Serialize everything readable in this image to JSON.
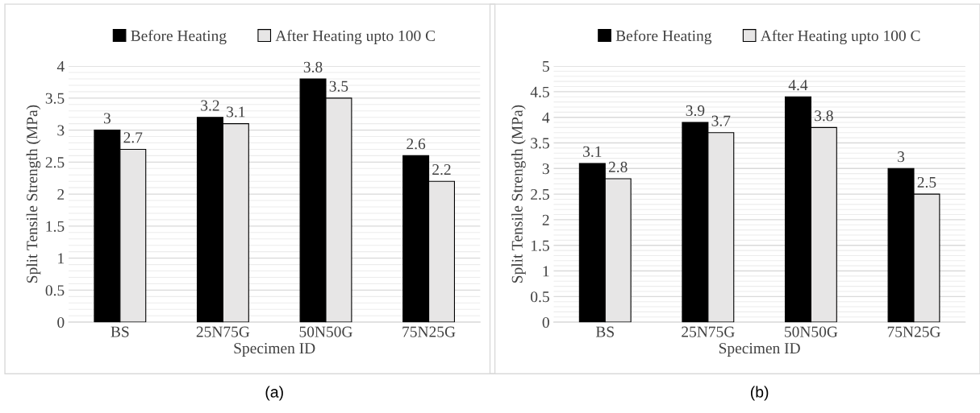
{
  "chart_data": [
    {
      "type": "bar",
      "xlabel": "Specimen ID",
      "ylabel": "Split Tensile Strength (MPa)",
      "categories": [
        "BS",
        "25N75G",
        "50N50G",
        "75N25G"
      ],
      "series": [
        {
          "name": "Before Heating",
          "color": "#000000",
          "values": [
            3,
            3.2,
            3.8,
            2.6
          ]
        },
        {
          "name": "After Heating upto 100 C",
          "color": "#e7e6e6",
          "values": [
            2.7,
            3.1,
            3.5,
            2.2
          ]
        }
      ],
      "ylim": [
        0,
        4
      ],
      "yticks": [
        0,
        0.5,
        1,
        1.5,
        2,
        2.5,
        3,
        3.5,
        4
      ],
      "grid": "y",
      "legend": "top",
      "data_labels": true,
      "annotations": [
        "(a)"
      ]
    },
    {
      "type": "bar",
      "xlabel": "Specimen ID",
      "ylabel": "Split Tensile Strength (MPa)",
      "categories": [
        "BS",
        "25N75G",
        "50N50G",
        "75N25G"
      ],
      "series": [
        {
          "name": "Before Heating",
          "color": "#000000",
          "values": [
            3.1,
            3.9,
            4.4,
            3
          ]
        },
        {
          "name": "After Heating upto 100 C",
          "color": "#e7e6e6",
          "values": [
            2.8,
            3.7,
            3.8,
            2.5
          ]
        }
      ],
      "ylim": [
        0,
        5
      ],
      "yticks": [
        0,
        0.5,
        1,
        1.5,
        2,
        2.5,
        3,
        3.5,
        4,
        4.5,
        5
      ],
      "grid": "y",
      "legend": "top",
      "data_labels": true,
      "annotations": [
        "(b)"
      ]
    }
  ]
}
